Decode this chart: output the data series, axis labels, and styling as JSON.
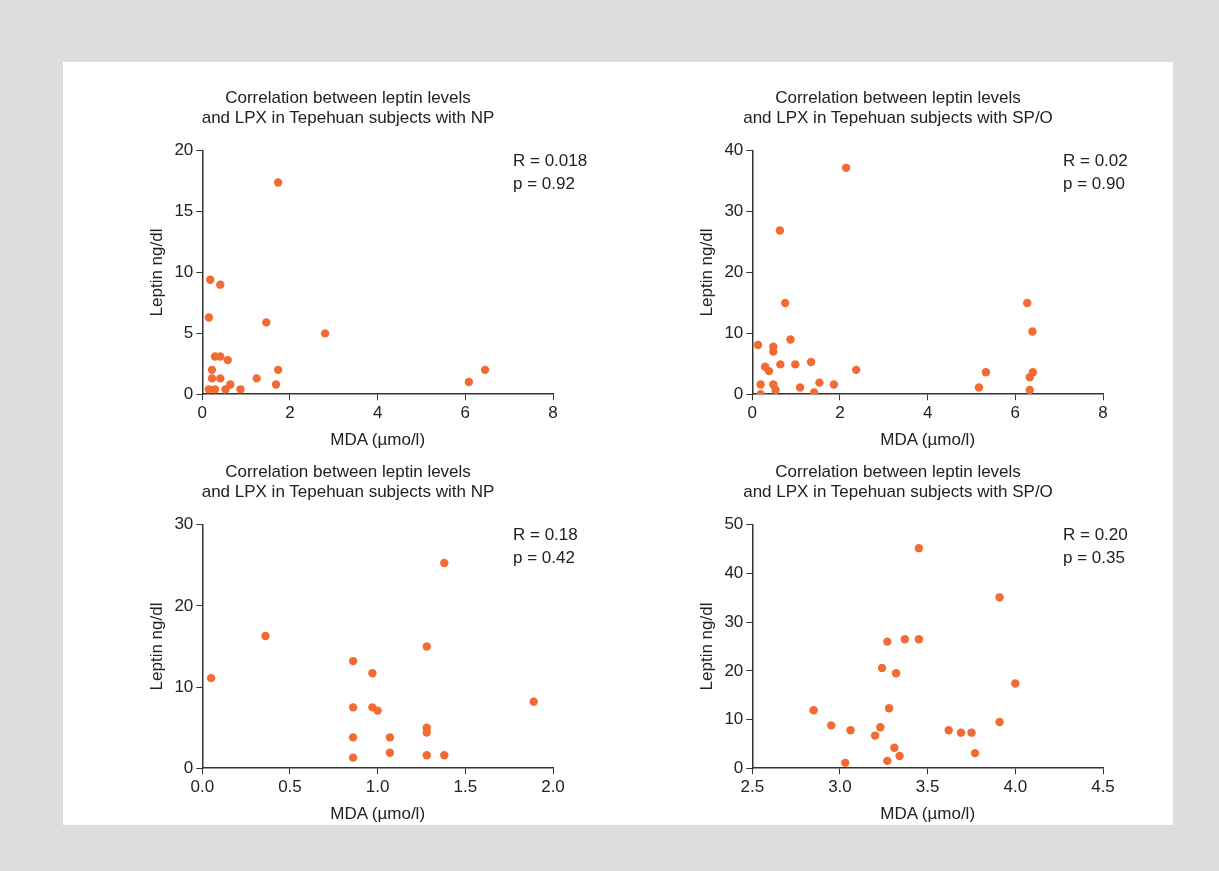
{
  "chart_data": [
    {
      "type": "scatter",
      "title": "Correlation between leptin levels\nand LPX in Tepehuan subjects with NP",
      "xlabel": "MDA (µmo/l)",
      "ylabel": "Leptin ng/dl",
      "annotations": [
        "R = 0.018",
        "p = 0.92"
      ],
      "grid": false,
      "legend": false,
      "marker": "circle",
      "xlim": [
        0,
        8
      ],
      "xticks": [
        0,
        2,
        4,
        6,
        8
      ],
      "ylim": [
        0,
        20
      ],
      "yticks": [
        0,
        5,
        10,
        15,
        20
      ],
      "series": [
        {
          "color": "#f26b32",
          "x": [
            1.73,
            0.18,
            0.41,
            0.15,
            1.46,
            2.8,
            0.29,
            0.41,
            0.58,
            0.22,
            1.73,
            6.45,
            0.22,
            0.41,
            1.24,
            6.08,
            1.68,
            0.64,
            0.15,
            0.29,
            0.53,
            0.87
          ],
          "values": [
            17.4,
            9.4,
            9,
            6.3,
            5.9,
            5,
            3.1,
            3.1,
            2.8,
            2,
            2,
            2,
            1.3,
            1.3,
            1.3,
            1,
            0.8,
            0.8,
            0.4,
            0.4,
            0.4,
            0.4
          ]
        }
      ]
    },
    {
      "type": "scatter",
      "title": "Correlation between leptin levels\nand LPX in Tepehuan subjects with SP/O",
      "xlabel": "MDA (µmo/l)",
      "ylabel": "Leptin ng/dl",
      "annotations": [
        "R = 0.02",
        "p = 0.90"
      ],
      "grid": false,
      "legend": false,
      "marker": "circle",
      "xlim": [
        0,
        8
      ],
      "xticks": [
        0,
        2,
        4,
        6,
        8
      ],
      "ylim": [
        0,
        40
      ],
      "yticks": [
        0,
        10,
        20,
        30,
        40
      ],
      "series": [
        {
          "color": "#f26b32",
          "x": [
            2.14,
            0.63,
            0.75,
            6.27,
            6.39,
            0.13,
            0.87,
            0.48,
            0.48,
            1.34,
            0.64,
            0.98,
            0.29,
            0.38,
            2.37,
            5.33,
            6.4,
            6.33,
            0.19,
            0.48,
            1.53,
            1.86,
            1.09,
            0.53,
            5.17,
            6.33,
            1.41,
            0.19
          ],
          "values": [
            37.2,
            26.9,
            15,
            15,
            10.3,
            8.1,
            9,
            7.8,
            7,
            5.3,
            4.9,
            4.9,
            4.5,
            3.8,
            4,
            3.6,
            3.6,
            2.8,
            1.6,
            1.6,
            1.9,
            1.6,
            1.1,
            0.7,
            1.1,
            0.7,
            0.3,
            0
          ]
        }
      ]
    },
    {
      "type": "scatter",
      "title": "Correlation between leptin levels\nand LPX in Tepehuan subjects with NP",
      "xlabel": "MDA (µmo/l)",
      "ylabel": "Leptin ng/dl",
      "annotations": [
        "R = 0.18",
        "p = 0.42"
      ],
      "grid": false,
      "legend": false,
      "marker": "circle",
      "xlim": [
        0,
        2
      ],
      "xticks": [
        {
          "value": 0,
          "label": "0.0"
        },
        {
          "value": 0.5,
          "label": "0.5"
        },
        {
          "value": 1,
          "label": "1.0"
        },
        {
          "value": 1.5,
          "label": "1.5"
        },
        {
          "value": 2,
          "label": "2.0"
        }
      ],
      "ylim": [
        0,
        30
      ],
      "yticks": [
        0,
        10,
        20,
        30
      ],
      "series": [
        {
          "color": "#f26b32",
          "x": [
            0.05,
            0.36,
            0.86,
            0.97,
            0.86,
            0.97,
            1,
            0.86,
            1.07,
            0.86,
            1.07,
            1.28,
            1.38,
            1.28,
            1.28,
            1.28,
            1.38,
            1.89
          ],
          "values": [
            11.1,
            16.3,
            13.2,
            11.7,
            7.5,
            7.5,
            7.1,
            3.8,
            3.8,
            1.3,
            1.9,
            15,
            25.3,
            5,
            4.4,
            1.6,
            1.6,
            8.2
          ]
        }
      ]
    },
    {
      "type": "scatter",
      "title": "Correlation between leptin levels\nand LPX in Tepehuan subjects with SP/O",
      "xlabel": "MDA (µmo/l)",
      "ylabel": "Leptin ng/dl",
      "annotations": [
        "R = 0.20",
        "p = 0.35"
      ],
      "grid": false,
      "legend": false,
      "marker": "circle",
      "xlim": [
        2.5,
        4.5
      ],
      "xticks": [
        {
          "value": 2.5,
          "label": "2.5"
        },
        {
          "value": 3,
          "label": "3.0"
        },
        {
          "value": 3.5,
          "label": "3.5"
        },
        {
          "value": 4,
          "label": "4.0"
        },
        {
          "value": 4.5,
          "label": "4.5"
        }
      ],
      "ylim": [
        0,
        50
      ],
      "yticks": [
        0,
        10,
        20,
        30,
        40,
        50
      ],
      "series": [
        {
          "color": "#f26b32",
          "x": [
            2.85,
            2.95,
            3.06,
            3.03,
            3.2,
            3.23,
            3.24,
            3.27,
            3.28,
            3.32,
            3.31,
            3.27,
            3.34,
            3.37,
            3.45,
            3.45,
            3.62,
            3.69,
            3.75,
            3.77,
            3.91,
            3.91,
            4
          ],
          "values": [
            11.9,
            8.8,
            7.8,
            1.1,
            6.7,
            8.4,
            20.6,
            26,
            12.3,
            19.5,
            4.2,
            1.5,
            2.5,
            26.5,
            26.5,
            45.2,
            7.8,
            7.3,
            7.3,
            3.1,
            9.5,
            35.1,
            17.4
          ]
        }
      ]
    }
  ]
}
